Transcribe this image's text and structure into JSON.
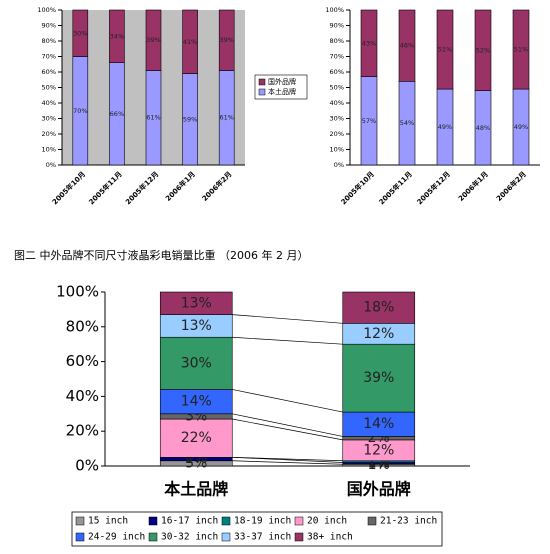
{
  "caption": "图二    中外品牌不同尺寸液晶彩电销量比重 （2006 年 2 月）",
  "chart_data": [
    {
      "type": "stacked_bar",
      "legend": "right",
      "categories": [
        "2005年10月",
        "2005年11月",
        "2005年12月",
        "2006年1月",
        "2006年2月"
      ],
      "series": [
        {
          "name": "本土品牌",
          "color": "#9999ff",
          "values": [
            70,
            66,
            61,
            59,
            61
          ],
          "value_labels": [
            "70%",
            "66%",
            "61%",
            "59%",
            "61%"
          ]
        },
        {
          "name": "国外品牌",
          "color": "#993366",
          "values": [
            30,
            34,
            39,
            41,
            39
          ],
          "value_labels": [
            "30%",
            "34%",
            "39%",
            "41%",
            "39%"
          ]
        }
      ],
      "ylim": [
        0,
        100
      ],
      "yticks": [
        {
          "value": 0,
          "label": "0%"
        },
        {
          "value": 10,
          "label": "10%"
        },
        {
          "value": 20,
          "label": "20%"
        },
        {
          "value": 30,
          "label": "30%"
        },
        {
          "value": 40,
          "label": "40%"
        },
        {
          "value": 50,
          "label": "50%"
        },
        {
          "value": 60,
          "label": "60%"
        },
        {
          "value": 70,
          "label": "70%"
        },
        {
          "value": 80,
          "label": "80%"
        },
        {
          "value": 90,
          "label": "90%"
        },
        {
          "value": 100,
          "label": "100%"
        }
      ]
    },
    {
      "type": "stacked_bar",
      "legend": false,
      "categories": [
        "2005年10月",
        "2005年11月",
        "2005年12月",
        "2006年1月",
        "2006年2月"
      ],
      "series": [
        {
          "name": "本土品牌",
          "color": "#9999ff",
          "values": [
            57,
            54,
            49,
            48,
            49
          ],
          "value_labels": [
            "57%",
            "54%",
            "49%",
            "48%",
            "49%"
          ]
        },
        {
          "name": "国外品牌",
          "color": "#993366",
          "values": [
            43,
            46,
            51,
            52,
            51
          ],
          "value_labels": [
            "43%",
            "46%",
            "51%",
            "52%",
            "51%"
          ]
        }
      ],
      "ylim": [
        0,
        100
      ],
      "yticks": [
        {
          "value": 0,
          "label": "0%"
        },
        {
          "value": 10,
          "label": "10%"
        },
        {
          "value": 20,
          "label": "20%"
        },
        {
          "value": 30,
          "label": "30%"
        },
        {
          "value": 40,
          "label": "40%"
        },
        {
          "value": 50,
          "label": "50%"
        },
        {
          "value": 60,
          "label": "60%"
        },
        {
          "value": 70,
          "label": "70%"
        },
        {
          "value": 80,
          "label": "80%"
        },
        {
          "value": 90,
          "label": "90%"
        },
        {
          "value": 100,
          "label": "100%"
        }
      ]
    },
    {
      "type": "stacked_bar",
      "legend": "bottom",
      "categories": [
        "本土品牌",
        "国外品牌"
      ],
      "series": [
        {
          "name": "15 inch",
          "color": "#969696",
          "values": [
            3,
            1
          ],
          "value_labels": [
            "3%",
            "1%"
          ]
        },
        {
          "name": "16-17 inch",
          "color": "#000080",
          "values": [
            2,
            1
          ],
          "value_labels": [
            "2%",
            "1%"
          ]
        },
        {
          "name": "18-19 inch",
          "color": "#008080",
          "values": [
            0,
            1
          ],
          "value_labels": [
            "0%",
            "1%"
          ]
        },
        {
          "name": "20 inch",
          "color": "#ff99cc",
          "values": [
            22,
            12
          ],
          "value_labels": [
            "22%",
            "12%"
          ]
        },
        {
          "name": "21-23 inch",
          "color": "#666666",
          "values": [
            3,
            2
          ],
          "value_labels": [
            "3%",
            "2%"
          ]
        },
        {
          "name": "24-29 inch",
          "color": "#3366ff",
          "values": [
            14,
            14
          ],
          "value_labels": [
            "14%",
            "14%"
          ]
        },
        {
          "name": "30-32 inch",
          "color": "#339966",
          "values": [
            30,
            39
          ],
          "value_labels": [
            "30%",
            "39%"
          ]
        },
        {
          "name": "33-37 inch",
          "color": "#99ccff",
          "values": [
            13,
            12
          ],
          "value_labels": [
            "13%",
            "12%"
          ]
        },
        {
          "name": "38+ inch",
          "color": "#993366",
          "values": [
            13,
            18
          ],
          "value_labels": [
            "13%",
            "18%"
          ]
        }
      ],
      "ylim": [
        0,
        100
      ],
      "yticks": [
        {
          "value": 0,
          "label": "0%"
        },
        {
          "value": 20,
          "label": "20%"
        },
        {
          "value": 40,
          "label": "40%"
        },
        {
          "value": 60,
          "label": "60%"
        },
        {
          "value": 80,
          "label": "80%"
        },
        {
          "value": 100,
          "label": "100%"
        }
      ]
    }
  ]
}
